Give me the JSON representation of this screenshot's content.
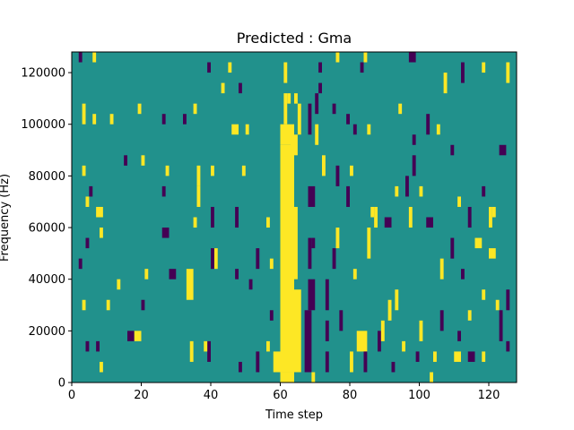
{
  "chart_data": {
    "type": "heatmap",
    "title": "Predicted : Gma",
    "xlabel": "Time step",
    "ylabel": "Frequency (Hz)",
    "xlim": [
      0,
      128
    ],
    "ylim": [
      0,
      128000
    ],
    "x_ticks": [
      0,
      20,
      40,
      60,
      80,
      100,
      120
    ],
    "x_tick_labels": [
      "0",
      "20",
      "40",
      "60",
      "80",
      "100",
      "120"
    ],
    "y_ticks": [
      0,
      20000,
      40000,
      60000,
      80000,
      100000,
      120000
    ],
    "y_tick_labels": [
      "0",
      "20000",
      "40000",
      "60000",
      "80000",
      "100000",
      "120000"
    ],
    "grid": false,
    "legend": "none",
    "colormap": {
      "low": "#440154",
      "mid": "#21918c",
      "high": "#fde725"
    },
    "background_value": "mid",
    "cells": [
      {
        "x": 2,
        "y": 124000,
        "w": 1,
        "h": 4000,
        "v": "low"
      },
      {
        "x": 6,
        "y": 124000,
        "w": 1,
        "h": 4000,
        "v": "high"
      },
      {
        "x": 39,
        "y": 120000,
        "w": 1,
        "h": 4000,
        "v": "low"
      },
      {
        "x": 45,
        "y": 120000,
        "w": 1,
        "h": 4000,
        "v": "high"
      },
      {
        "x": 43,
        "y": 112000,
        "w": 1,
        "h": 4000,
        "v": "high"
      },
      {
        "x": 48,
        "y": 112000,
        "w": 1,
        "h": 4000,
        "v": "low"
      },
      {
        "x": 3,
        "y": 100000,
        "w": 1,
        "h": 8000,
        "v": "high"
      },
      {
        "x": 6,
        "y": 100000,
        "w": 1,
        "h": 4000,
        "v": "high"
      },
      {
        "x": 11,
        "y": 100000,
        "w": 1,
        "h": 4000,
        "v": "high"
      },
      {
        "x": 19,
        "y": 104000,
        "w": 1,
        "h": 4000,
        "v": "high"
      },
      {
        "x": 26,
        "y": 100000,
        "w": 1,
        "h": 4000,
        "v": "low"
      },
      {
        "x": 32,
        "y": 100000,
        "w": 1,
        "h": 4000,
        "v": "low"
      },
      {
        "x": 35,
        "y": 104000,
        "w": 1,
        "h": 4000,
        "v": "high"
      },
      {
        "x": 46,
        "y": 96000,
        "w": 2,
        "h": 4000,
        "v": "high"
      },
      {
        "x": 50,
        "y": 96000,
        "w": 1,
        "h": 4000,
        "v": "high"
      },
      {
        "x": 60,
        "y": 92000,
        "w": 4,
        "h": 8000,
        "v": "high"
      },
      {
        "x": 61,
        "y": 100000,
        "w": 1,
        "h": 12000,
        "v": "high"
      },
      {
        "x": 62,
        "y": 108000,
        "w": 1,
        "h": 4000,
        "v": "high"
      },
      {
        "x": 61,
        "y": 116000,
        "w": 1,
        "h": 8000,
        "v": "high"
      },
      {
        "x": 60,
        "y": 4000,
        "w": 4,
        "h": 88000,
        "v": "high"
      },
      {
        "x": 58,
        "y": 4000,
        "w": 2,
        "h": 8000,
        "v": "high"
      },
      {
        "x": 60,
        "y": 0,
        "w": 4,
        "h": 4000,
        "v": "high"
      },
      {
        "x": 64,
        "y": 4000,
        "w": 2,
        "h": 32000,
        "v": "high"
      },
      {
        "x": 64,
        "y": 40000,
        "w": 1,
        "h": 28000,
        "v": "high"
      },
      {
        "x": 63,
        "y": 88000,
        "w": 2,
        "h": 8000,
        "v": "high"
      },
      {
        "x": 65,
        "y": 96000,
        "w": 1,
        "h": 12000,
        "v": "high"
      },
      {
        "x": 64,
        "y": 108000,
        "w": 1,
        "h": 4000,
        "v": "high"
      },
      {
        "x": 67,
        "y": 4000,
        "w": 2,
        "h": 24000,
        "v": "low"
      },
      {
        "x": 68,
        "y": 28000,
        "w": 2,
        "h": 12000,
        "v": "low"
      },
      {
        "x": 68,
        "y": 44000,
        "w": 1,
        "h": 12000,
        "v": "low"
      },
      {
        "x": 68,
        "y": 68000,
        "w": 2,
        "h": 8000,
        "v": "low"
      },
      {
        "x": 69,
        "y": 52000,
        "w": 1,
        "h": 4000,
        "v": "low"
      },
      {
        "x": 68,
        "y": 96000,
        "w": 1,
        "h": 12000,
        "v": "low"
      },
      {
        "x": 70,
        "y": 92000,
        "w": 1,
        "h": 8000,
        "v": "high"
      },
      {
        "x": 70,
        "y": 104000,
        "w": 1,
        "h": 8000,
        "v": "low"
      },
      {
        "x": 71,
        "y": 112000,
        "w": 1,
        "h": 4000,
        "v": "low"
      },
      {
        "x": 69,
        "y": 0,
        "w": 1,
        "h": 4000,
        "v": "high"
      },
      {
        "x": 73,
        "y": 4000,
        "w": 1,
        "h": 8000,
        "v": "low"
      },
      {
        "x": 73,
        "y": 16000,
        "w": 1,
        "h": 8000,
        "v": "low"
      },
      {
        "x": 73,
        "y": 28000,
        "w": 1,
        "h": 12000,
        "v": "low"
      },
      {
        "x": 77,
        "y": 20000,
        "w": 1,
        "h": 8000,
        "v": "low"
      },
      {
        "x": 80,
        "y": 4000,
        "w": 1,
        "h": 8000,
        "v": "high"
      },
      {
        "x": 82,
        "y": 12000,
        "w": 3,
        "h": 8000,
        "v": "high"
      },
      {
        "x": 84,
        "y": 4000,
        "w": 1,
        "h": 8000,
        "v": "low"
      },
      {
        "x": 88,
        "y": 12000,
        "w": 1,
        "h": 8000,
        "v": "low"
      },
      {
        "x": 89,
        "y": 16000,
        "w": 1,
        "h": 8000,
        "v": "high"
      },
      {
        "x": 91,
        "y": 24000,
        "w": 1,
        "h": 8000,
        "v": "high"
      },
      {
        "x": 93,
        "y": 28000,
        "w": 1,
        "h": 8000,
        "v": "high"
      },
      {
        "x": 90,
        "y": 60000,
        "w": 2,
        "h": 4000,
        "v": "low"
      },
      {
        "x": 97,
        "y": 60000,
        "w": 1,
        "h": 8000,
        "v": "high"
      },
      {
        "x": 102,
        "y": 60000,
        "w": 2,
        "h": 4000,
        "v": "low"
      },
      {
        "x": 104,
        "y": 8000,
        "w": 1,
        "h": 4000,
        "v": "high"
      },
      {
        "x": 103,
        "y": 0,
        "w": 1,
        "h": 4000,
        "v": "high"
      },
      {
        "x": 110,
        "y": 8000,
        "w": 2,
        "h": 4000,
        "v": "high"
      },
      {
        "x": 114,
        "y": 8000,
        "w": 2,
        "h": 4000,
        "v": "low"
      },
      {
        "x": 123,
        "y": 16000,
        "w": 1,
        "h": 12000,
        "v": "low"
      },
      {
        "x": 120,
        "y": 48000,
        "w": 2,
        "h": 4000,
        "v": "high"
      },
      {
        "x": 120,
        "y": 60000,
        "w": 1,
        "h": 8000,
        "v": "high"
      },
      {
        "x": 123,
        "y": 88000,
        "w": 2,
        "h": 4000,
        "v": "low"
      },
      {
        "x": 109,
        "y": 88000,
        "w": 1,
        "h": 4000,
        "v": "low"
      },
      {
        "x": 97,
        "y": 124000,
        "w": 2,
        "h": 4000,
        "v": "low"
      },
      {
        "x": 107,
        "y": 112000,
        "w": 1,
        "h": 8000,
        "v": "high"
      },
      {
        "x": 112,
        "y": 116000,
        "w": 1,
        "h": 8000,
        "v": "low"
      },
      {
        "x": 118,
        "y": 120000,
        "w": 1,
        "h": 4000,
        "v": "high"
      },
      {
        "x": 125,
        "y": 116000,
        "w": 1,
        "h": 8000,
        "v": "high"
      },
      {
        "x": 15,
        "y": 84000,
        "w": 1,
        "h": 4000,
        "v": "low"
      },
      {
        "x": 20,
        "y": 84000,
        "w": 1,
        "h": 4000,
        "v": "high"
      },
      {
        "x": 27,
        "y": 80000,
        "w": 1,
        "h": 4000,
        "v": "high"
      },
      {
        "x": 36,
        "y": 76000,
        "w": 1,
        "h": 8000,
        "v": "high"
      },
      {
        "x": 40,
        "y": 80000,
        "w": 1,
        "h": 4000,
        "v": "high"
      },
      {
        "x": 49,
        "y": 80000,
        "w": 1,
        "h": 4000,
        "v": "high"
      },
      {
        "x": 26,
        "y": 72000,
        "w": 1,
        "h": 4000,
        "v": "low"
      },
      {
        "x": 36,
        "y": 68000,
        "w": 1,
        "h": 8000,
        "v": "high"
      },
      {
        "x": 7,
        "y": 64000,
        "w": 2,
        "h": 4000,
        "v": "high"
      },
      {
        "x": 26,
        "y": 56000,
        "w": 2,
        "h": 4000,
        "v": "low"
      },
      {
        "x": 35,
        "y": 60000,
        "w": 1,
        "h": 4000,
        "v": "high"
      },
      {
        "x": 40,
        "y": 60000,
        "w": 1,
        "h": 8000,
        "v": "low"
      },
      {
        "x": 47,
        "y": 60000,
        "w": 1,
        "h": 8000,
        "v": "low"
      },
      {
        "x": 41,
        "y": 44000,
        "w": 1,
        "h": 8000,
        "v": "high"
      },
      {
        "x": 40,
        "y": 44000,
        "w": 1,
        "h": 8000,
        "v": "low"
      },
      {
        "x": 28,
        "y": 40000,
        "w": 2,
        "h": 4000,
        "v": "low"
      },
      {
        "x": 33,
        "y": 32000,
        "w": 2,
        "h": 12000,
        "v": "high"
      },
      {
        "x": 16,
        "y": 16000,
        "w": 2,
        "h": 4000,
        "v": "low"
      },
      {
        "x": 18,
        "y": 16000,
        "w": 2,
        "h": 4000,
        "v": "high"
      },
      {
        "x": 39,
        "y": 8000,
        "w": 1,
        "h": 8000,
        "v": "low"
      },
      {
        "x": 38,
        "y": 12000,
        "w": 1,
        "h": 4000,
        "v": "high"
      },
      {
        "x": 34,
        "y": 8000,
        "w": 1,
        "h": 8000,
        "v": "high"
      },
      {
        "x": 48,
        "y": 4000,
        "w": 1,
        "h": 4000,
        "v": "low"
      },
      {
        "x": 53,
        "y": 4000,
        "w": 1,
        "h": 8000,
        "v": "low"
      },
      {
        "x": 8,
        "y": 4000,
        "w": 1,
        "h": 4000,
        "v": "high"
      },
      {
        "x": 4,
        "y": 12000,
        "w": 1,
        "h": 4000,
        "v": "low"
      },
      {
        "x": 7,
        "y": 12000,
        "w": 1,
        "h": 4000,
        "v": "low"
      },
      {
        "x": 3,
        "y": 28000,
        "w": 1,
        "h": 4000,
        "v": "high"
      },
      {
        "x": 10,
        "y": 28000,
        "w": 1,
        "h": 4000,
        "v": "high"
      },
      {
        "x": 20,
        "y": 28000,
        "w": 1,
        "h": 4000,
        "v": "low"
      },
      {
        "x": 2,
        "y": 44000,
        "w": 1,
        "h": 4000,
        "v": "low"
      },
      {
        "x": 13,
        "y": 36000,
        "w": 1,
        "h": 4000,
        "v": "high"
      },
      {
        "x": 21,
        "y": 40000,
        "w": 1,
        "h": 4000,
        "v": "high"
      },
      {
        "x": 4,
        "y": 52000,
        "w": 1,
        "h": 4000,
        "v": "low"
      },
      {
        "x": 8,
        "y": 56000,
        "w": 1,
        "h": 4000,
        "v": "high"
      },
      {
        "x": 4,
        "y": 68000,
        "w": 1,
        "h": 4000,
        "v": "high"
      },
      {
        "x": 5,
        "y": 72000,
        "w": 1,
        "h": 4000,
        "v": "low"
      },
      {
        "x": 3,
        "y": 80000,
        "w": 1,
        "h": 4000,
        "v": "high"
      },
      {
        "x": 56,
        "y": 60000,
        "w": 1,
        "h": 4000,
        "v": "high"
      },
      {
        "x": 57,
        "y": 44000,
        "w": 1,
        "h": 4000,
        "v": "high"
      },
      {
        "x": 56,
        "y": 12000,
        "w": 1,
        "h": 4000,
        "v": "high"
      },
      {
        "x": 57,
        "y": 24000,
        "w": 1,
        "h": 4000,
        "v": "low"
      },
      {
        "x": 53,
        "y": 44000,
        "w": 1,
        "h": 8000,
        "v": "low"
      },
      {
        "x": 47,
        "y": 40000,
        "w": 1,
        "h": 4000,
        "v": "low"
      },
      {
        "x": 51,
        "y": 36000,
        "w": 1,
        "h": 4000,
        "v": "low"
      },
      {
        "x": 75,
        "y": 44000,
        "w": 1,
        "h": 8000,
        "v": "low"
      },
      {
        "x": 76,
        "y": 52000,
        "w": 1,
        "h": 8000,
        "v": "high"
      },
      {
        "x": 81,
        "y": 40000,
        "w": 1,
        "h": 4000,
        "v": "high"
      },
      {
        "x": 85,
        "y": 48000,
        "w": 1,
        "h": 12000,
        "v": "high"
      },
      {
        "x": 87,
        "y": 60000,
        "w": 1,
        "h": 8000,
        "v": "high"
      },
      {
        "x": 79,
        "y": 68000,
        "w": 1,
        "h": 8000,
        "v": "low"
      },
      {
        "x": 80,
        "y": 80000,
        "w": 1,
        "h": 4000,
        "v": "high"
      },
      {
        "x": 76,
        "y": 76000,
        "w": 1,
        "h": 8000,
        "v": "low"
      },
      {
        "x": 72,
        "y": 80000,
        "w": 1,
        "h": 8000,
        "v": "high"
      },
      {
        "x": 86,
        "y": 64000,
        "w": 1,
        "h": 4000,
        "v": "high"
      },
      {
        "x": 81,
        "y": 96000,
        "w": 1,
        "h": 4000,
        "v": "low"
      },
      {
        "x": 85,
        "y": 96000,
        "w": 1,
        "h": 4000,
        "v": "high"
      },
      {
        "x": 79,
        "y": 100000,
        "w": 1,
        "h": 4000,
        "v": "low"
      },
      {
        "x": 75,
        "y": 104000,
        "w": 1,
        "h": 4000,
        "v": "low"
      },
      {
        "x": 71,
        "y": 120000,
        "w": 1,
        "h": 4000,
        "v": "low"
      },
      {
        "x": 76,
        "y": 124000,
        "w": 1,
        "h": 4000,
        "v": "high"
      },
      {
        "x": 83,
        "y": 120000,
        "w": 1,
        "h": 4000,
        "v": "low"
      },
      {
        "x": 84,
        "y": 124000,
        "w": 1,
        "h": 4000,
        "v": "high"
      },
      {
        "x": 94,
        "y": 104000,
        "w": 1,
        "h": 4000,
        "v": "high"
      },
      {
        "x": 102,
        "y": 96000,
        "w": 1,
        "h": 8000,
        "v": "low"
      },
      {
        "x": 105,
        "y": 96000,
        "w": 1,
        "h": 4000,
        "v": "high"
      },
      {
        "x": 98,
        "y": 92000,
        "w": 1,
        "h": 4000,
        "v": "low"
      },
      {
        "x": 98,
        "y": 80000,
        "w": 1,
        "h": 8000,
        "v": "low"
      },
      {
        "x": 93,
        "y": 72000,
        "w": 1,
        "h": 4000,
        "v": "high"
      },
      {
        "x": 96,
        "y": 72000,
        "w": 1,
        "h": 8000,
        "v": "low"
      },
      {
        "x": 100,
        "y": 72000,
        "w": 1,
        "h": 4000,
        "v": "high"
      },
      {
        "x": 111,
        "y": 68000,
        "w": 1,
        "h": 4000,
        "v": "high"
      },
      {
        "x": 114,
        "y": 60000,
        "w": 1,
        "h": 8000,
        "v": "low"
      },
      {
        "x": 116,
        "y": 52000,
        "w": 2,
        "h": 4000,
        "v": "high"
      },
      {
        "x": 118,
        "y": 72000,
        "w": 1,
        "h": 4000,
        "v": "low"
      },
      {
        "x": 121,
        "y": 64000,
        "w": 1,
        "h": 4000,
        "v": "high"
      },
      {
        "x": 109,
        "y": 48000,
        "w": 1,
        "h": 8000,
        "v": "low"
      },
      {
        "x": 106,
        "y": 40000,
        "w": 1,
        "h": 8000,
        "v": "high"
      },
      {
        "x": 112,
        "y": 40000,
        "w": 1,
        "h": 4000,
        "v": "low"
      },
      {
        "x": 118,
        "y": 32000,
        "w": 1,
        "h": 4000,
        "v": "high"
      },
      {
        "x": 122,
        "y": 28000,
        "w": 1,
        "h": 4000,
        "v": "high"
      },
      {
        "x": 125,
        "y": 28000,
        "w": 1,
        "h": 8000,
        "v": "low"
      },
      {
        "x": 111,
        "y": 16000,
        "w": 1,
        "h": 4000,
        "v": "low"
      },
      {
        "x": 114,
        "y": 24000,
        "w": 1,
        "h": 4000,
        "v": "high"
      },
      {
        "x": 106,
        "y": 20000,
        "w": 1,
        "h": 8000,
        "v": "low"
      },
      {
        "x": 100,
        "y": 16000,
        "w": 1,
        "h": 8000,
        "v": "high"
      },
      {
        "x": 99,
        "y": 8000,
        "w": 1,
        "h": 4000,
        "v": "low"
      },
      {
        "x": 95,
        "y": 12000,
        "w": 1,
        "h": 4000,
        "v": "high"
      },
      {
        "x": 92,
        "y": 4000,
        "w": 1,
        "h": 4000,
        "v": "low"
      },
      {
        "x": 118,
        "y": 8000,
        "w": 1,
        "h": 4000,
        "v": "high"
      },
      {
        "x": 125,
        "y": 12000,
        "w": 1,
        "h": 4000,
        "v": "low"
      }
    ]
  }
}
